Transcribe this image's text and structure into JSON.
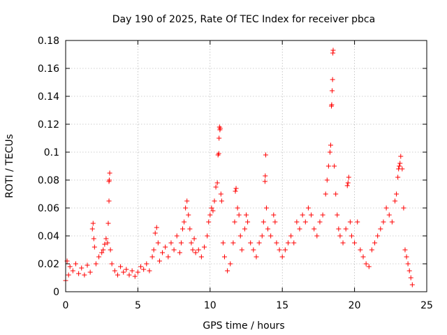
{
  "chart_data": {
    "type": "scatter",
    "title": "Day 190 of 2025, Rate Of TEC Index for receiver pbca",
    "xlabel": "GPS time / hours",
    "ylabel": "ROTI / TECUs",
    "xlim": [
      0,
      25
    ],
    "ylim": [
      0,
      0.18
    ],
    "x_ticks": [
      0,
      5,
      10,
      15,
      20,
      25
    ],
    "x_tick_labels": [
      "0",
      "5",
      "10",
      "15",
      "20",
      "25"
    ],
    "y_ticks": [
      0,
      0.02,
      0.04,
      0.06,
      0.08,
      0.1,
      0.12,
      0.14,
      0.16,
      0.18
    ],
    "y_tick_labels": [
      "0",
      "0.02",
      "0.04",
      "0.06",
      "0.08",
      "0.1",
      "0.12",
      "0.14",
      "0.16",
      "0.18"
    ],
    "grid": true,
    "marker": "+",
    "color": "#ff0000",
    "series": [
      {
        "name": "ROTI",
        "points": [
          [
            0.0,
            0.008
          ],
          [
            0.1,
            0.022
          ],
          [
            0.2,
            0.012
          ],
          [
            0.3,
            0.018
          ],
          [
            0.5,
            0.015
          ],
          [
            0.7,
            0.02
          ],
          [
            0.9,
            0.013
          ],
          [
            1.1,
            0.017
          ],
          [
            1.3,
            0.012
          ],
          [
            1.5,
            0.019
          ],
          [
            1.7,
            0.014
          ],
          [
            1.85,
            0.045
          ],
          [
            1.9,
            0.049
          ],
          [
            1.95,
            0.038
          ],
          [
            2.0,
            0.032
          ],
          [
            2.1,
            0.02
          ],
          [
            2.3,
            0.025
          ],
          [
            2.5,
            0.028
          ],
          [
            2.6,
            0.03
          ],
          [
            2.7,
            0.034
          ],
          [
            2.8,
            0.038
          ],
          [
            2.9,
            0.035
          ],
          [
            2.95,
            0.049
          ],
          [
            3.0,
            0.065
          ],
          [
            3.0,
            0.079
          ],
          [
            3.02,
            0.08
          ],
          [
            3.05,
            0.085
          ],
          [
            3.1,
            0.03
          ],
          [
            3.2,
            0.02
          ],
          [
            3.4,
            0.015
          ],
          [
            3.6,
            0.012
          ],
          [
            3.8,
            0.018
          ],
          [
            4.0,
            0.014
          ],
          [
            4.2,
            0.016
          ],
          [
            4.4,
            0.012
          ],
          [
            4.6,
            0.015
          ],
          [
            4.8,
            0.011
          ],
          [
            5.0,
            0.014
          ],
          [
            5.2,
            0.018
          ],
          [
            5.4,
            0.016
          ],
          [
            5.6,
            0.02
          ],
          [
            5.8,
            0.015
          ],
          [
            6.0,
            0.025
          ],
          [
            6.1,
            0.03
          ],
          [
            6.2,
            0.042
          ],
          [
            6.3,
            0.046
          ],
          [
            6.4,
            0.035
          ],
          [
            6.5,
            0.022
          ],
          [
            6.7,
            0.028
          ],
          [
            6.9,
            0.032
          ],
          [
            7.1,
            0.025
          ],
          [
            7.3,
            0.035
          ],
          [
            7.5,
            0.03
          ],
          [
            7.7,
            0.04
          ],
          [
            7.9,
            0.028
          ],
          [
            8.0,
            0.035
          ],
          [
            8.1,
            0.045
          ],
          [
            8.2,
            0.05
          ],
          [
            8.3,
            0.06
          ],
          [
            8.4,
            0.065
          ],
          [
            8.5,
            0.055
          ],
          [
            8.6,
            0.045
          ],
          [
            8.7,
            0.035
          ],
          [
            8.8,
            0.03
          ],
          [
            8.9,
            0.038
          ],
          [
            9.0,
            0.028
          ],
          [
            9.2,
            0.03
          ],
          [
            9.4,
            0.025
          ],
          [
            9.6,
            0.032
          ],
          [
            9.8,
            0.04
          ],
          [
            9.9,
            0.05
          ],
          [
            10.0,
            0.055
          ],
          [
            10.1,
            0.06
          ],
          [
            10.2,
            0.058
          ],
          [
            10.3,
            0.065
          ],
          [
            10.4,
            0.075
          ],
          [
            10.5,
            0.078
          ],
          [
            10.55,
            0.098
          ],
          [
            10.6,
            0.099
          ],
          [
            10.62,
            0.11
          ],
          [
            10.65,
            0.118
          ],
          [
            10.68,
            0.116
          ],
          [
            10.7,
            0.117
          ],
          [
            10.75,
            0.07
          ],
          [
            10.8,
            0.065
          ],
          [
            10.9,
            0.035
          ],
          [
            11.0,
            0.025
          ],
          [
            11.2,
            0.015
          ],
          [
            11.4,
            0.02
          ],
          [
            11.6,
            0.035
          ],
          [
            11.7,
            0.05
          ],
          [
            11.75,
            0.072
          ],
          [
            11.8,
            0.074
          ],
          [
            11.9,
            0.06
          ],
          [
            12.0,
            0.055
          ],
          [
            12.1,
            0.04
          ],
          [
            12.2,
            0.03
          ],
          [
            12.4,
            0.045
          ],
          [
            12.5,
            0.055
          ],
          [
            12.6,
            0.05
          ],
          [
            12.8,
            0.035
          ],
          [
            13.0,
            0.03
          ],
          [
            13.2,
            0.025
          ],
          [
            13.4,
            0.035
          ],
          [
            13.6,
            0.04
          ],
          [
            13.7,
            0.05
          ],
          [
            13.8,
            0.079
          ],
          [
            13.82,
            0.083
          ],
          [
            13.85,
            0.098
          ],
          [
            13.9,
            0.06
          ],
          [
            14.0,
            0.045
          ],
          [
            14.2,
            0.04
          ],
          [
            14.4,
            0.055
          ],
          [
            14.5,
            0.05
          ],
          [
            14.6,
            0.035
          ],
          [
            14.8,
            0.03
          ],
          [
            15.0,
            0.025
          ],
          [
            15.2,
            0.03
          ],
          [
            15.4,
            0.035
          ],
          [
            15.6,
            0.04
          ],
          [
            15.8,
            0.035
          ],
          [
            16.0,
            0.05
          ],
          [
            16.2,
            0.045
          ],
          [
            16.4,
            0.055
          ],
          [
            16.6,
            0.05
          ],
          [
            16.8,
            0.06
          ],
          [
            17.0,
            0.055
          ],
          [
            17.2,
            0.045
          ],
          [
            17.4,
            0.04
          ],
          [
            17.6,
            0.05
          ],
          [
            17.8,
            0.055
          ],
          [
            18.0,
            0.07
          ],
          [
            18.1,
            0.08
          ],
          [
            18.2,
            0.09
          ],
          [
            18.3,
            0.1
          ],
          [
            18.35,
            0.105
          ],
          [
            18.4,
            0.133
          ],
          [
            18.42,
            0.134
          ],
          [
            18.45,
            0.144
          ],
          [
            18.48,
            0.152
          ],
          [
            18.5,
            0.171
          ],
          [
            18.52,
            0.173
          ],
          [
            18.6,
            0.09
          ],
          [
            18.7,
            0.07
          ],
          [
            18.8,
            0.055
          ],
          [
            18.9,
            0.045
          ],
          [
            19.0,
            0.04
          ],
          [
            19.2,
            0.035
          ],
          [
            19.4,
            0.045
          ],
          [
            19.5,
            0.076
          ],
          [
            19.55,
            0.078
          ],
          [
            19.6,
            0.082
          ],
          [
            19.7,
            0.05
          ],
          [
            19.8,
            0.04
          ],
          [
            20.0,
            0.035
          ],
          [
            20.2,
            0.05
          ],
          [
            20.4,
            0.03
          ],
          [
            20.6,
            0.025
          ],
          [
            20.8,
            0.02
          ],
          [
            21.0,
            0.018
          ],
          [
            21.2,
            0.03
          ],
          [
            21.4,
            0.035
          ],
          [
            21.6,
            0.04
          ],
          [
            21.8,
            0.045
          ],
          [
            22.0,
            0.05
          ],
          [
            22.2,
            0.06
          ],
          [
            22.4,
            0.055
          ],
          [
            22.6,
            0.05
          ],
          [
            22.8,
            0.065
          ],
          [
            22.9,
            0.07
          ],
          [
            23.0,
            0.082
          ],
          [
            23.05,
            0.088
          ],
          [
            23.1,
            0.09
          ],
          [
            23.15,
            0.092
          ],
          [
            23.2,
            0.097
          ],
          [
            23.3,
            0.088
          ],
          [
            23.4,
            0.06
          ],
          [
            23.5,
            0.03
          ],
          [
            23.6,
            0.025
          ],
          [
            23.7,
            0.02
          ],
          [
            23.8,
            0.015
          ],
          [
            23.9,
            0.01
          ],
          [
            24.0,
            0.005
          ]
        ]
      }
    ]
  }
}
